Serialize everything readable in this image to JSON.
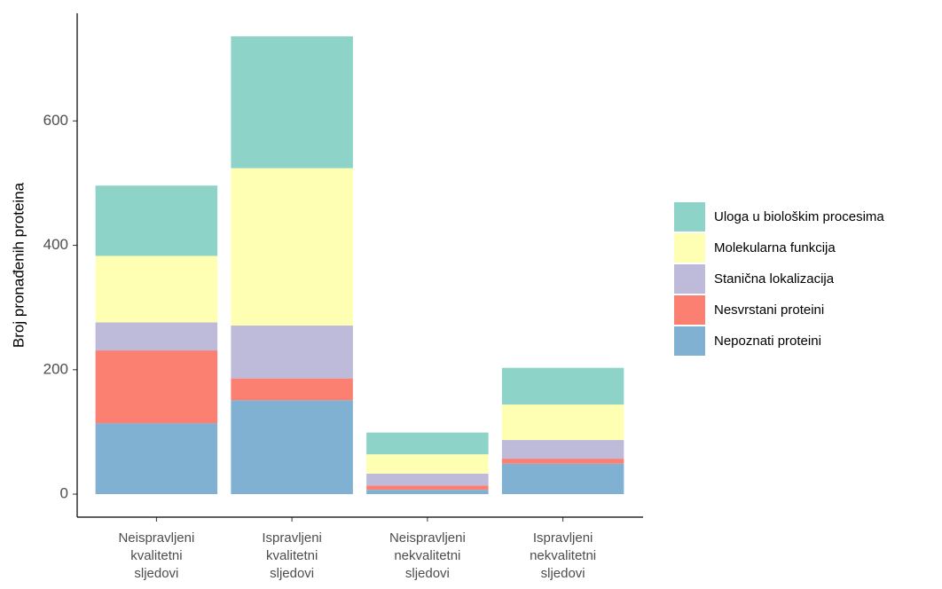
{
  "chart_data": {
    "type": "stacked_bar",
    "ylabel": "Broj pronađenih proteina",
    "categories": [
      "Neispravljeni\nkvalitetni\nsljedovi",
      "Ispravljeni\nkvalitetni\nsljedovi",
      "Neispravljeni\nnekvalitetni\nsljedovi",
      "Ispravljeni\nnekvalitetni\nsljedovi"
    ],
    "series": [
      {
        "name": "Nepoznati proteini",
        "color": "#80b1d3",
        "values": [
          114,
          151,
          7,
          49
        ]
      },
      {
        "name": "Nesvrstani proteini",
        "color": "#fb8072",
        "values": [
          117,
          35,
          7,
          8
        ]
      },
      {
        "name": "Stanična lokalizacija",
        "color": "#bebada",
        "values": [
          45,
          85,
          19,
          30
        ]
      },
      {
        "name": "Molekularna funkcija",
        "color": "#ffffb3",
        "values": [
          107,
          253,
          31,
          57
        ]
      },
      {
        "name": "Uloga u biološkim procesima",
        "color": "#8dd3c7",
        "values": [
          113,
          212,
          35,
          59
        ]
      }
    ],
    "ylim": [
      -37,
      773
    ],
    "yticks": [
      0,
      200,
      400,
      600
    ],
    "legend": "right"
  }
}
